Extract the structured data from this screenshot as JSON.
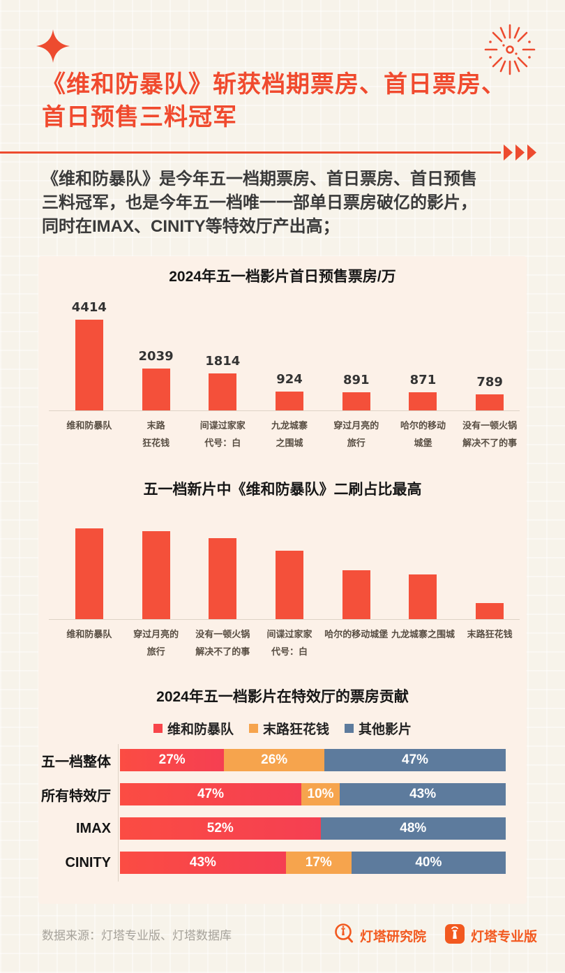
{
  "header": {
    "title_lines": [
      "《维和防暴队》斩获档期票房、首日票房、",
      "首日预售三料冠军"
    ],
    "decor_icons": [
      "sparkle-icon",
      "firework-icon",
      "triple-arrow-icon"
    ]
  },
  "intro": {
    "lines": [
      "《维和防暴队》是今年五一档期票房、首日票房、首日预售",
      "三料冠军，也是今年五一档唯一一部单日票房破亿的影片，",
      "同时在IMAX、CINITY等特效厅产出高；"
    ]
  },
  "colors": {
    "accent_red": "#f04a2e",
    "bar_red": "#f4503a",
    "stack_red_start": "#fb4c43",
    "stack_red_end": "#f53f52",
    "stack_orange": "#f6a44d",
    "stack_blue": "#5d7b9d",
    "card_bg": "#fcf1e8",
    "page_bg": "#f7f3ea",
    "logo_orange": "#f2591f"
  },
  "chart_data": [
    {
      "type": "bar",
      "title": "2024年五一档影片首日预售票房/万",
      "unit": "万",
      "categories": [
        "维和防暴队",
        "末路狂花钱",
        "间谍过家家 代号：白",
        "九龙城寨之围城",
        "穿过月亮的旅行",
        "哈尔的移动城堡",
        "没有一顿火锅解决不了的事"
      ],
      "category_lines": [
        [
          "维和防暴队"
        ],
        [
          "末路",
          "狂花钱"
        ],
        [
          "间谍过家家",
          "代号：白"
        ],
        [
          "九龙城寨",
          "之围城"
        ],
        [
          "穿过月亮的",
          "旅行"
        ],
        [
          "哈尔的移动",
          "城堡"
        ],
        [
          "没有一顿火锅",
          "解决不了的事"
        ]
      ],
      "values": [
        4414,
        2039,
        1814,
        924,
        891,
        871,
        789
      ],
      "value_labels_shown": true,
      "ylim": [
        0,
        4414
      ],
      "bar_color": "#f4503a",
      "grid": false
    },
    {
      "type": "bar",
      "title": "五一档新片中《维和防暴队》二刷占比最高",
      "categories": [
        "维和防暴队",
        "穿过月亮的旅行",
        "没有一顿火锅解决不了的事",
        "间谍过家家 代号：白",
        "哈尔的移动城堡",
        "九龙城寨之围城",
        "末路狂花钱"
      ],
      "category_lines": [
        [
          "维和防暴队"
        ],
        [
          "穿过月亮的",
          "旅行"
        ],
        [
          "没有一顿火锅",
          "解决不了的事"
        ],
        [
          "间谍过家家",
          "代号：白"
        ],
        [
          "哈尔的移动城堡"
        ],
        [
          "九龙城寨之围城"
        ],
        [
          "末路狂花钱"
        ]
      ],
      "values": [
        100,
        97,
        89,
        75,
        54,
        49,
        18
      ],
      "value_labels_shown": false,
      "note": "bars carry no numeric labels; values are relative heights with tallest bar = 100",
      "bar_color": "#f4503a",
      "grid": false
    },
    {
      "type": "bar",
      "orientation": "horizontal-stacked",
      "title": "2024年五一档影片在特效厅的票房贡献",
      "unit": "%",
      "categories": [
        "五一档整体",
        "所有特效厅",
        "IMAX",
        "CINITY"
      ],
      "series": [
        {
          "name": "维和防暴队",
          "color": "#f8454a",
          "values": [
            27,
            47,
            52,
            43
          ]
        },
        {
          "name": "末路狂花钱",
          "color": "#f6a44d",
          "values": [
            26,
            10,
            0,
            17
          ]
        },
        {
          "name": "其他影片",
          "color": "#5d7b9d",
          "values": [
            47,
            43,
            48,
            40
          ]
        }
      ],
      "legend_position": "top",
      "xlim": [
        0,
        100
      ]
    }
  ],
  "footer": {
    "source": "数据来源：灯塔专业版、灯塔数据库",
    "logos": [
      {
        "icon": "lighthouse-magnifier-icon",
        "label": "灯塔研究院"
      },
      {
        "icon": "lighthouse-square-icon",
        "label": "灯塔专业版"
      }
    ]
  }
}
